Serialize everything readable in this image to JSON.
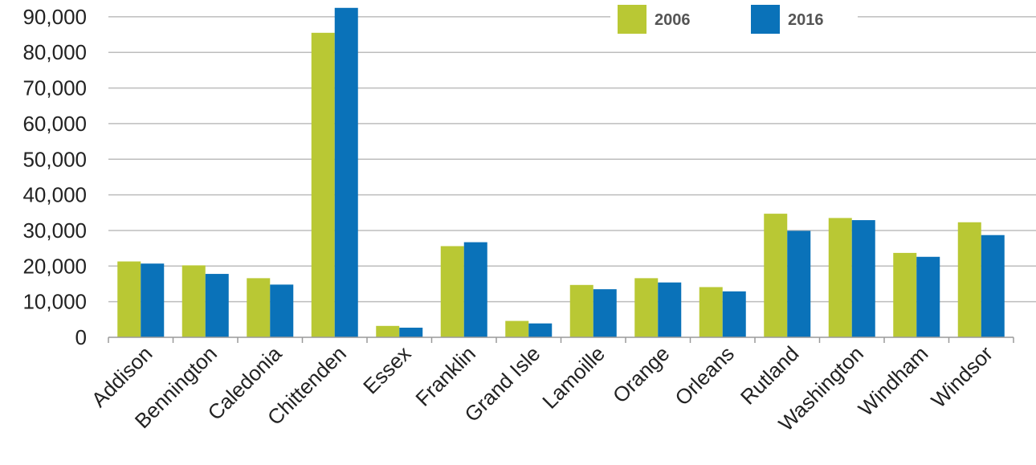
{
  "chart_data": {
    "type": "bar",
    "title": "",
    "xlabel": "",
    "ylabel": "",
    "ylim": [
      0,
      92000
    ],
    "yticks": [
      0,
      10000,
      20000,
      30000,
      40000,
      50000,
      60000,
      70000,
      80000,
      90000
    ],
    "ytick_labels": [
      "0",
      "10,000",
      "20,000",
      "30,000",
      "40,000",
      "50,000",
      "60,000",
      "70,000",
      "80,000",
      "90,000"
    ],
    "grid": "horizontal",
    "legend_position": "top-right",
    "categories": [
      "Addison",
      "Bennington",
      "Caledonia",
      "Chittenden",
      "Essex",
      "Franklin",
      "Grand Isle",
      "Lamoille",
      "Orange",
      "Orleans",
      "Rutland",
      "Washington",
      "Windham",
      "Windsor"
    ],
    "series": [
      {
        "name": "2006",
        "color": "#b9c834",
        "values": [
          21300,
          20200,
          16600,
          85500,
          3200,
          25600,
          4600,
          14700,
          16600,
          14100,
          34700,
          33500,
          23700,
          32300
        ]
      },
      {
        "name": "2016",
        "color": "#0a72b9",
        "values": [
          20700,
          17800,
          14800,
          92500,
          2700,
          26700,
          3900,
          13500,
          15400,
          12900,
          29900,
          32900,
          22600,
          28700
        ]
      }
    ]
  }
}
